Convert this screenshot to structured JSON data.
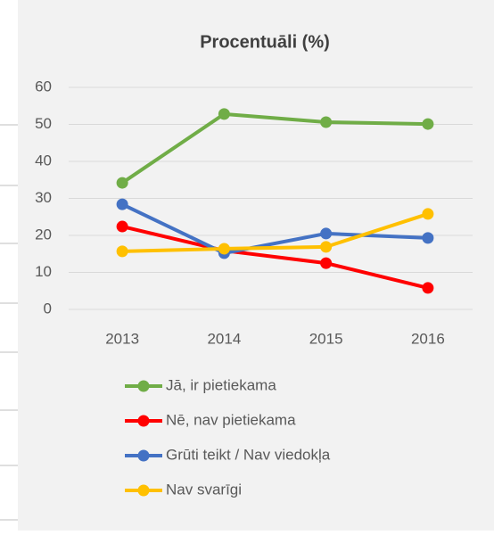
{
  "chart_data": {
    "type": "line",
    "title": "Procentuāli (%)",
    "categories": [
      "2013",
      "2014",
      "2015",
      "2016"
    ],
    "series": [
      {
        "name": "Jā, ir pietiekama",
        "color": "#70ad47",
        "values": [
          34.2,
          52.8,
          50.6,
          50.1
        ]
      },
      {
        "name": "Nē, nav pietiekama",
        "color": "#ff0000",
        "values": [
          22.4,
          15.9,
          12.5,
          5.8
        ]
      },
      {
        "name": "Grūti teikt / Nav viedokļa",
        "color": "#4472c4",
        "values": [
          28.4,
          15.2,
          20.5,
          19.3
        ]
      },
      {
        "name": "Nav svarīgi",
        "color": "#ffc000",
        "values": [
          15.7,
          16.4,
          16.9,
          25.8
        ]
      }
    ],
    "ylim": [
      0,
      60
    ],
    "yticks": [
      0,
      10,
      20,
      30,
      40,
      50,
      60
    ],
    "grid": true,
    "legend": "bottom"
  }
}
